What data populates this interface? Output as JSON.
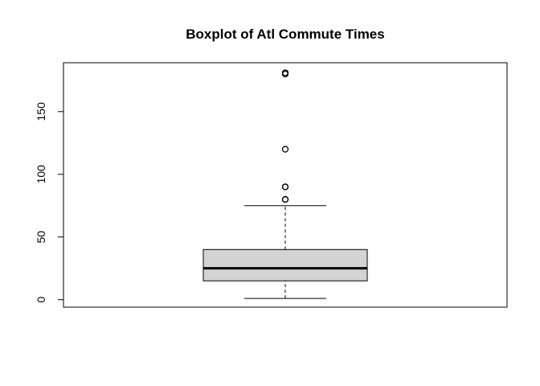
{
  "chart_data": {
    "type": "boxplot",
    "title": "Boxplot of Atl Commute Times",
    "xlabel": "",
    "ylabel": "",
    "yticks": [
      0,
      50,
      100,
      150
    ],
    "ylim": [
      -6,
      189
    ],
    "box": {
      "min": 1,
      "q1": 15,
      "median": 25,
      "q3": 40,
      "max": 75,
      "outliers": [
        80,
        80,
        90,
        90,
        120,
        180,
        181
      ]
    },
    "colors": {
      "box_fill": "#d3d3d3",
      "stroke": "#000000"
    },
    "grid": false,
    "legend": "none"
  }
}
